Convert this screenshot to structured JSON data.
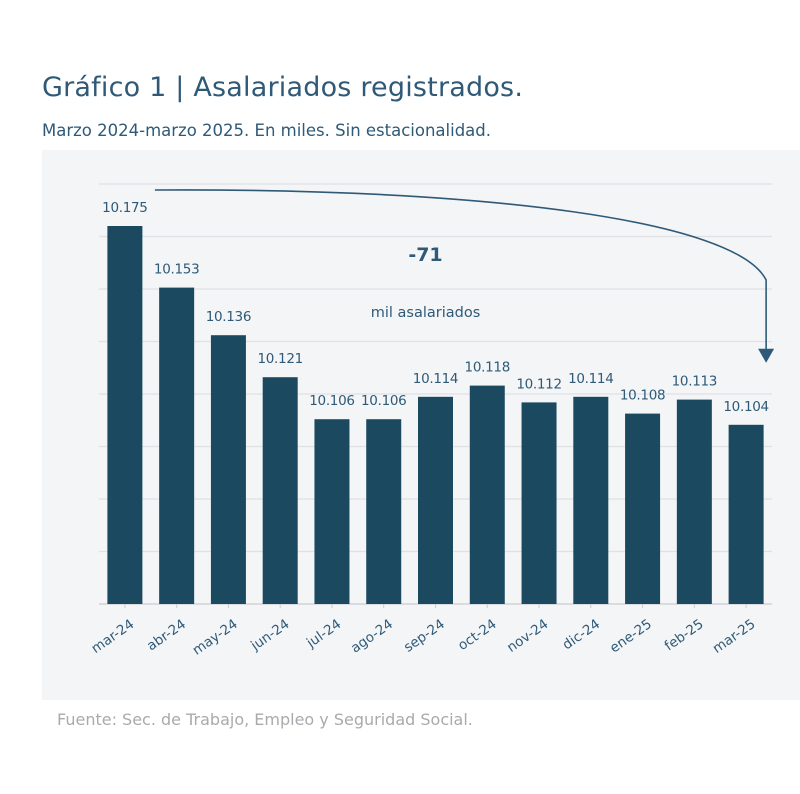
{
  "header": {
    "title": "Gráfico 1 | Asalariados registrados.",
    "subtitle": "Marzo 2024-marzo 2025. En miles. Sin estacionalidad."
  },
  "footer": {
    "source": "Fuente: Sec. de Trabajo, Empleo y Seguridad Social."
  },
  "colors": {
    "bar": "#1b4a60",
    "text": "#2e5a78",
    "panel": "#f4f5f7",
    "grid": "#dfe1e4",
    "muted": "#a9aaad"
  },
  "chart_data": {
    "type": "bar",
    "title": "Gráfico 1 | Asalariados registrados.",
    "subtitle": "Marzo 2024-marzo 2025. En miles. Sin estacionalidad.",
    "categories": [
      "mar-24",
      "abr-24",
      "may-24",
      "jun-24",
      "jul-24",
      "ago-24",
      "sep-24",
      "oct-24",
      "nov-24",
      "dic-24",
      "ene-25",
      "feb-25",
      "mar-25"
    ],
    "values": [
      10175,
      10153,
      10136,
      10121,
      10106,
      10106,
      10114,
      10118,
      10112,
      10114,
      10108,
      10113,
      10104
    ],
    "value_labels": [
      "10.175",
      "10.153",
      "10.136",
      "10.121",
      "10.106",
      "10.106",
      "10.114",
      "10.118",
      "10.112",
      "10.114",
      "10.108",
      "10.113",
      "10.104"
    ],
    "ylim": [
      10040,
      10190
    ],
    "grid": true,
    "legend": "none",
    "annotation": {
      "value": "-71",
      "label": "mil asalariados",
      "from": "mar-24",
      "to": "mar-25"
    }
  }
}
